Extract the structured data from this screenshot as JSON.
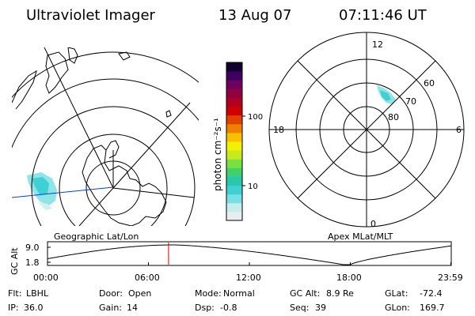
{
  "header": {
    "instrument": "Ultraviolet Imager",
    "date": "13 Aug 07",
    "time": "07:11:46 UT"
  },
  "geo_panel": {
    "label": "Geographic Lat/Lon"
  },
  "apex_panel": {
    "label": "Apex MLat/MLT",
    "mlt_labels": {
      "top": "12",
      "left": "18",
      "right": "6",
      "bottom": "0"
    },
    "lat_labels": [
      "60",
      "70",
      "80"
    ]
  },
  "colorbar": {
    "unit_label": "photon cm⁻²s⁻¹",
    "tick_labels": [
      "100",
      "10"
    ],
    "colors": [
      "#e8eef0",
      "#c6ecec",
      "#76e0e6",
      "#3fd0d4",
      "#28c8a8",
      "#40d070",
      "#78e040",
      "#c8e820",
      "#f0f000",
      "#f8c000",
      "#f08000",
      "#e04000",
      "#d00000",
      "#b00020",
      "#900040",
      "#700060",
      "#400060",
      "#100030"
    ]
  },
  "altitude_plot": {
    "ylabel": "GC Alt",
    "y_ticks": [
      "9.0",
      "1.8"
    ],
    "x_ticks": [
      "00:00",
      "06:00",
      "12:00",
      "18:00",
      "23:59"
    ],
    "current_time_hours": 7.196
  },
  "status": {
    "row1": [
      {
        "label": "Flt:",
        "value": "LBHL"
      },
      {
        "label": "Door:",
        "value": "Open"
      },
      {
        "label": "Mode:",
        "value": "Normal"
      },
      {
        "label": "GC Alt:",
        "value": "8.9 Re"
      },
      {
        "label": "GLat:",
        "value": "-72.4"
      }
    ],
    "row2": [
      {
        "label": "IP:",
        "value": "36.0"
      },
      {
        "label": "Gain:",
        "value": "14"
      },
      {
        "label": "Dsp:",
        "value": "-0.8"
      },
      {
        "label": "Seq:",
        "value": "39"
      },
      {
        "label": "GLon:",
        "value": "169.7"
      }
    ]
  }
}
